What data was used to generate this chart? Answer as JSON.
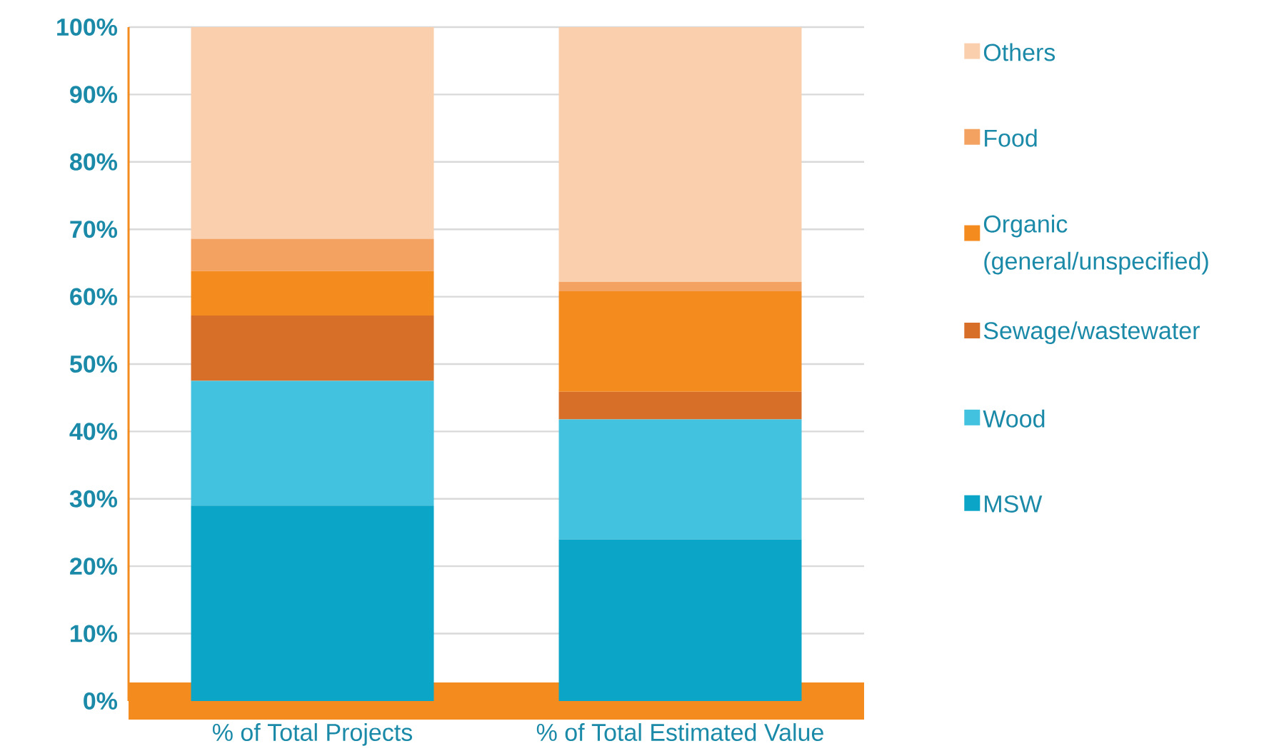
{
  "chart_data": {
    "type": "bar",
    "stacked": true,
    "categories": [
      "% of Total Projects",
      "% of Total Estimated Value"
    ],
    "series": [
      {
        "name": "MSW",
        "color": "#0ba5c7",
        "values": [
          29,
          24
        ]
      },
      {
        "name": "Wood",
        "color": "#42c2df",
        "values": [
          18.5,
          17.8
        ]
      },
      {
        "name": "Sewage/wastewater",
        "color": "#d86f28",
        "values": [
          9.7,
          4.1
        ]
      },
      {
        "name": "Organic (general/unspecified)",
        "color": "#f48b1f",
        "values": [
          6.6,
          14.9
        ]
      },
      {
        "name": "Food",
        "color": "#f4a261",
        "values": [
          4.8,
          1.4
        ]
      },
      {
        "name": "Others",
        "color": "#f9cfad",
        "values": [
          31.4,
          37.8
        ]
      }
    ],
    "ylim": [
      0,
      100
    ],
    "yticks": [
      {
        "value": 0,
        "label": "0%"
      },
      {
        "value": 10,
        "label": "10%"
      },
      {
        "value": 20,
        "label": "20%"
      },
      {
        "value": 30,
        "label": "30%"
      },
      {
        "value": 40,
        "label": "40%"
      },
      {
        "value": 50,
        "label": "50%"
      },
      {
        "value": 60,
        "label": "60%"
      },
      {
        "value": 70,
        "label": "70%"
      },
      {
        "value": 80,
        "label": "80%"
      },
      {
        "value": 90,
        "label": "90%"
      },
      {
        "value": 100,
        "label": "100%"
      }
    ],
    "grid": "y",
    "legend": "right"
  }
}
